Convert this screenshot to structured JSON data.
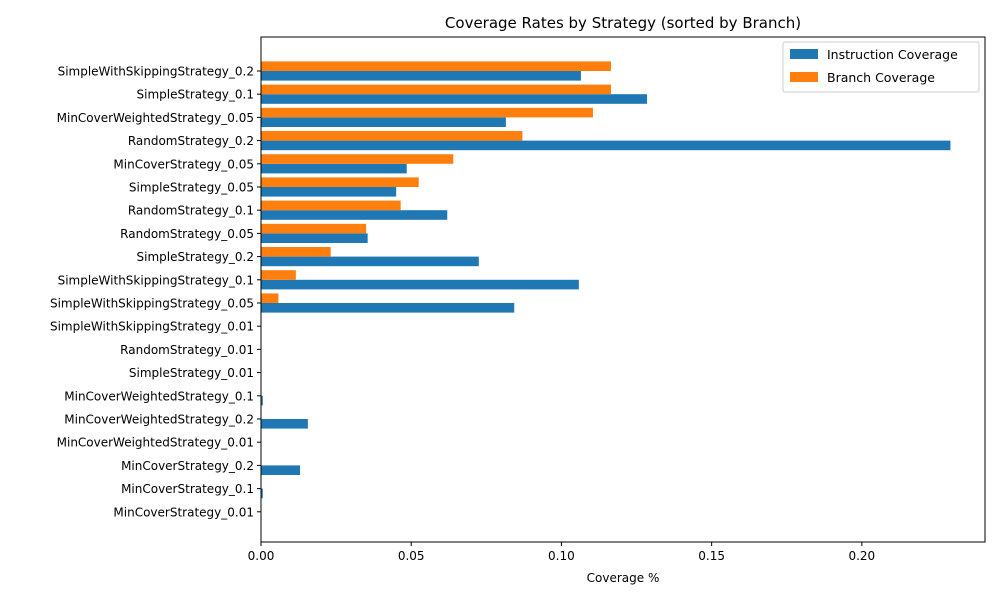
{
  "chart_data": {
    "type": "bar",
    "orientation": "horizontal",
    "title": "Coverage Rates by Strategy (sorted by Branch)",
    "xlabel": "Coverage %",
    "ylabel": "",
    "xlim": [
      0,
      0.241
    ],
    "xticks": [
      "0.00",
      "0.05",
      "0.10",
      "0.15",
      "0.20"
    ],
    "xtick_values": [
      0,
      0.05,
      0.1,
      0.15,
      0.2
    ],
    "grid": false,
    "legend_position": "top-right",
    "categories": [
      "SimpleWithSkippingStrategy_0.2",
      "SimpleStrategy_0.1",
      "MinCoverWeightedStrategy_0.05",
      "RandomStrategy_0.2",
      "MinCoverStrategy_0.05",
      "SimpleStrategy_0.05",
      "RandomStrategy_0.1",
      "RandomStrategy_0.05",
      "SimpleStrategy_0.2",
      "SimpleWithSkippingStrategy_0.1",
      "SimpleWithSkippingStrategy_0.05",
      "SimpleWithSkippingStrategy_0.01",
      "RandomStrategy_0.01",
      "SimpleStrategy_0.01",
      "MinCoverWeightedStrategy_0.1",
      "MinCoverWeightedStrategy_0.2",
      "MinCoverWeightedStrategy_0.01",
      "MinCoverStrategy_0.2",
      "MinCoverStrategy_0.1",
      "MinCoverStrategy_0.01"
    ],
    "series": [
      {
        "name": "Instruction Coverage",
        "color": "#1f77b4",
        "values": [
          0.1065,
          0.1285,
          0.0815,
          0.2295,
          0.0485,
          0.045,
          0.062,
          0.0355,
          0.0725,
          0.1058,
          0.0843,
          0.0,
          0.0,
          0.0,
          0.0006,
          0.0156,
          0.0,
          0.013,
          0.0006,
          0.0
        ]
      },
      {
        "name": "Branch Coverage",
        "color": "#ff7f0e",
        "values": [
          0.1165,
          0.1165,
          0.1105,
          0.087,
          0.064,
          0.0525,
          0.0465,
          0.035,
          0.0232,
          0.0116,
          0.0058,
          0.0,
          0.0,
          0.0,
          0.0,
          0.0,
          0.0,
          0.0,
          0.0,
          0.0
        ]
      }
    ]
  }
}
